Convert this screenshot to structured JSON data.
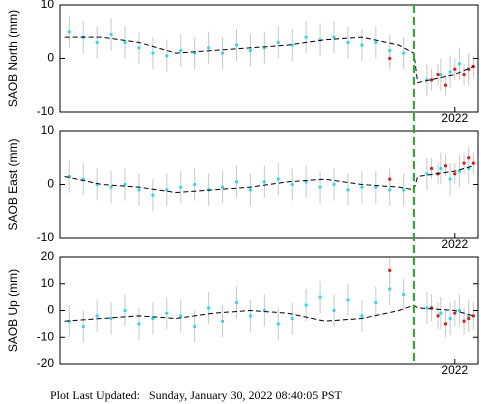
{
  "chart_data": [
    {
      "type": "scatter",
      "y_label": "SAOB North (mm)",
      "xlim": [
        2017.75,
        2022.25
      ],
      "ylim": [
        -10,
        10
      ],
      "yticks": [
        -10,
        0,
        10
      ],
      "xticks": [
        2022
      ],
      "series": [
        {
          "color": "#22ddf0",
          "x": [
            2017.85,
            2018.0,
            2018.15,
            2018.3,
            2018.45,
            2018.6,
            2018.75,
            2018.9,
            2019.05,
            2019.2,
            2019.35,
            2019.5,
            2019.65,
            2019.8,
            2019.95,
            2020.1,
            2020.25,
            2020.4,
            2020.55,
            2020.7,
            2020.85,
            2021.0,
            2021.15,
            2021.3,
            2021.45,
            2021.7,
            2021.85,
            2021.95,
            2022.05,
            2022.15
          ],
          "values": [
            5,
            4,
            3,
            4.5,
            3,
            2,
            1,
            0.5,
            1.5,
            1,
            2,
            1,
            2.5,
            1.5,
            2,
            3,
            2.5,
            4,
            3.5,
            4,
            3,
            2.5,
            3,
            1.5,
            1,
            -4,
            -3,
            -2.5,
            -1,
            -2
          ],
          "errors": [
            3,
            3,
            3,
            3,
            3,
            3,
            3,
            3,
            3,
            3,
            3,
            3,
            3,
            3,
            3,
            3,
            3,
            3,
            3,
            3,
            3,
            3,
            3,
            3,
            3,
            3,
            3,
            3,
            3,
            3
          ]
        },
        {
          "color": "#ee1111",
          "x": [
            2021.3,
            2021.75,
            2021.82,
            2021.9,
            2022.0,
            2022.1,
            2022.15,
            2022.2
          ],
          "values": [
            0,
            -4,
            -3,
            -5,
            -2,
            -3,
            -2,
            -1.5
          ],
          "errors": [
            2,
            2,
            2,
            2,
            2,
            2,
            2,
            2
          ]
        }
      ],
      "model": {
        "x": [
          2017.8,
          2018.2,
          2018.6,
          2019.0,
          2019.4,
          2019.8,
          2020.2,
          2020.6,
          2021.0,
          2021.4,
          2021.56,
          2021.6,
          2022.0,
          2022.2
        ],
        "values": [
          4,
          4,
          3,
          1,
          1.5,
          2,
          2.5,
          3.5,
          4,
          2.5,
          1,
          -4.5,
          -3,
          -1.5
        ]
      }
    },
    {
      "type": "scatter",
      "y_label": "SAOB East (mm)",
      "xlim": [
        2017.75,
        2022.25
      ],
      "ylim": [
        -10,
        10
      ],
      "yticks": [
        -10,
        0,
        10
      ],
      "xticks": [
        2022
      ],
      "series": [
        {
          "color": "#22ddf0",
          "x": [
            2017.85,
            2018.0,
            2018.15,
            2018.3,
            2018.45,
            2018.6,
            2018.75,
            2018.9,
            2019.05,
            2019.2,
            2019.35,
            2019.5,
            2019.65,
            2019.8,
            2019.95,
            2020.1,
            2020.25,
            2020.4,
            2020.55,
            2020.7,
            2020.85,
            2021.0,
            2021.15,
            2021.3,
            2021.45,
            2021.7,
            2021.85,
            2021.95,
            2022.05,
            2022.15
          ],
          "values": [
            1.5,
            1,
            0,
            -0.5,
            0,
            -1,
            -2,
            -1,
            -0.5,
            0,
            -1,
            -0.5,
            0.5,
            -1,
            0.5,
            1,
            0,
            0.5,
            -0.5,
            0,
            -1,
            -0.5,
            -0.5,
            -1,
            -1,
            2,
            3,
            1,
            2.5,
            3
          ],
          "errors": [
            3,
            3,
            3,
            3,
            3,
            3,
            3,
            3,
            3,
            3,
            3,
            3,
            3,
            3,
            3,
            3,
            3,
            3,
            3,
            3,
            3,
            3,
            3,
            3,
            3,
            3,
            3,
            3,
            3,
            3
          ]
        },
        {
          "color": "#ee1111",
          "x": [
            2021.3,
            2021.75,
            2021.82,
            2021.9,
            2022.0,
            2022.1,
            2022.15,
            2022.2
          ],
          "values": [
            1,
            3,
            2,
            3.5,
            2,
            4,
            5,
            4
          ],
          "errors": [
            2,
            2,
            2,
            2,
            2,
            2,
            2,
            2
          ]
        }
      ],
      "model": {
        "x": [
          2017.8,
          2018.2,
          2018.6,
          2019.0,
          2019.4,
          2019.8,
          2020.2,
          2020.6,
          2021.0,
          2021.4,
          2021.56,
          2021.6,
          2022.0,
          2022.2
        ],
        "values": [
          1.5,
          0,
          -0.5,
          -1.5,
          -1,
          -0.5,
          0.5,
          1,
          0,
          -0.5,
          -1,
          1.5,
          2.5,
          3.5
        ]
      }
    },
    {
      "type": "scatter",
      "y_label": "SAOB Up (mm)",
      "xlim": [
        2017.75,
        2022.25
      ],
      "ylim": [
        -20,
        20
      ],
      "yticks": [
        -20,
        -10,
        0,
        10,
        20
      ],
      "xticks": [
        2022
      ],
      "series": [
        {
          "color": "#22ddf0",
          "x": [
            2017.85,
            2018.0,
            2018.15,
            2018.3,
            2018.45,
            2018.6,
            2018.75,
            2018.9,
            2019.05,
            2019.2,
            2019.35,
            2019.5,
            2019.65,
            2019.8,
            2019.95,
            2020.1,
            2020.25,
            2020.4,
            2020.55,
            2020.7,
            2020.85,
            2021.0,
            2021.15,
            2021.3,
            2021.45,
            2021.7,
            2021.85,
            2021.95,
            2022.05,
            2022.15
          ],
          "values": [
            -4,
            -6,
            -2,
            -3,
            0,
            -5,
            -3,
            -1,
            -2,
            -6,
            1,
            -4,
            3,
            -2,
            0,
            -5,
            -3,
            2,
            5,
            0,
            4,
            -2,
            3,
            8,
            6,
            1,
            -1,
            -3,
            0,
            -2
          ],
          "errors": [
            6,
            6,
            6,
            6,
            6,
            6,
            6,
            6,
            6,
            6,
            6,
            6,
            6,
            6,
            6,
            6,
            6,
            6,
            6,
            6,
            6,
            6,
            6,
            6,
            6,
            6,
            6,
            6,
            6,
            6
          ]
        },
        {
          "color": "#ee1111",
          "x": [
            2021.3,
            2021.75,
            2021.82,
            2021.9,
            2022.0,
            2022.1,
            2022.15,
            2022.2
          ],
          "values": [
            15,
            1,
            -2,
            -5,
            -1,
            -4,
            -3,
            -2
          ],
          "errors": [
            5,
            5,
            5,
            5,
            5,
            5,
            5,
            5
          ]
        }
      ],
      "model": {
        "x": [
          2017.8,
          2018.2,
          2018.6,
          2019.0,
          2019.4,
          2019.8,
          2020.2,
          2020.6,
          2021.0,
          2021.4,
          2021.56,
          2021.6,
          2022.0,
          2022.2
        ],
        "values": [
          -4,
          -3,
          -2,
          -3,
          -1,
          0,
          -1,
          -4,
          -3,
          0,
          2,
          1,
          0,
          -2
        ]
      }
    }
  ],
  "event_x": 2021.56,
  "footer": "Plot Last Updated:   Sunday, January 30, 2022 08:40:05 PST"
}
